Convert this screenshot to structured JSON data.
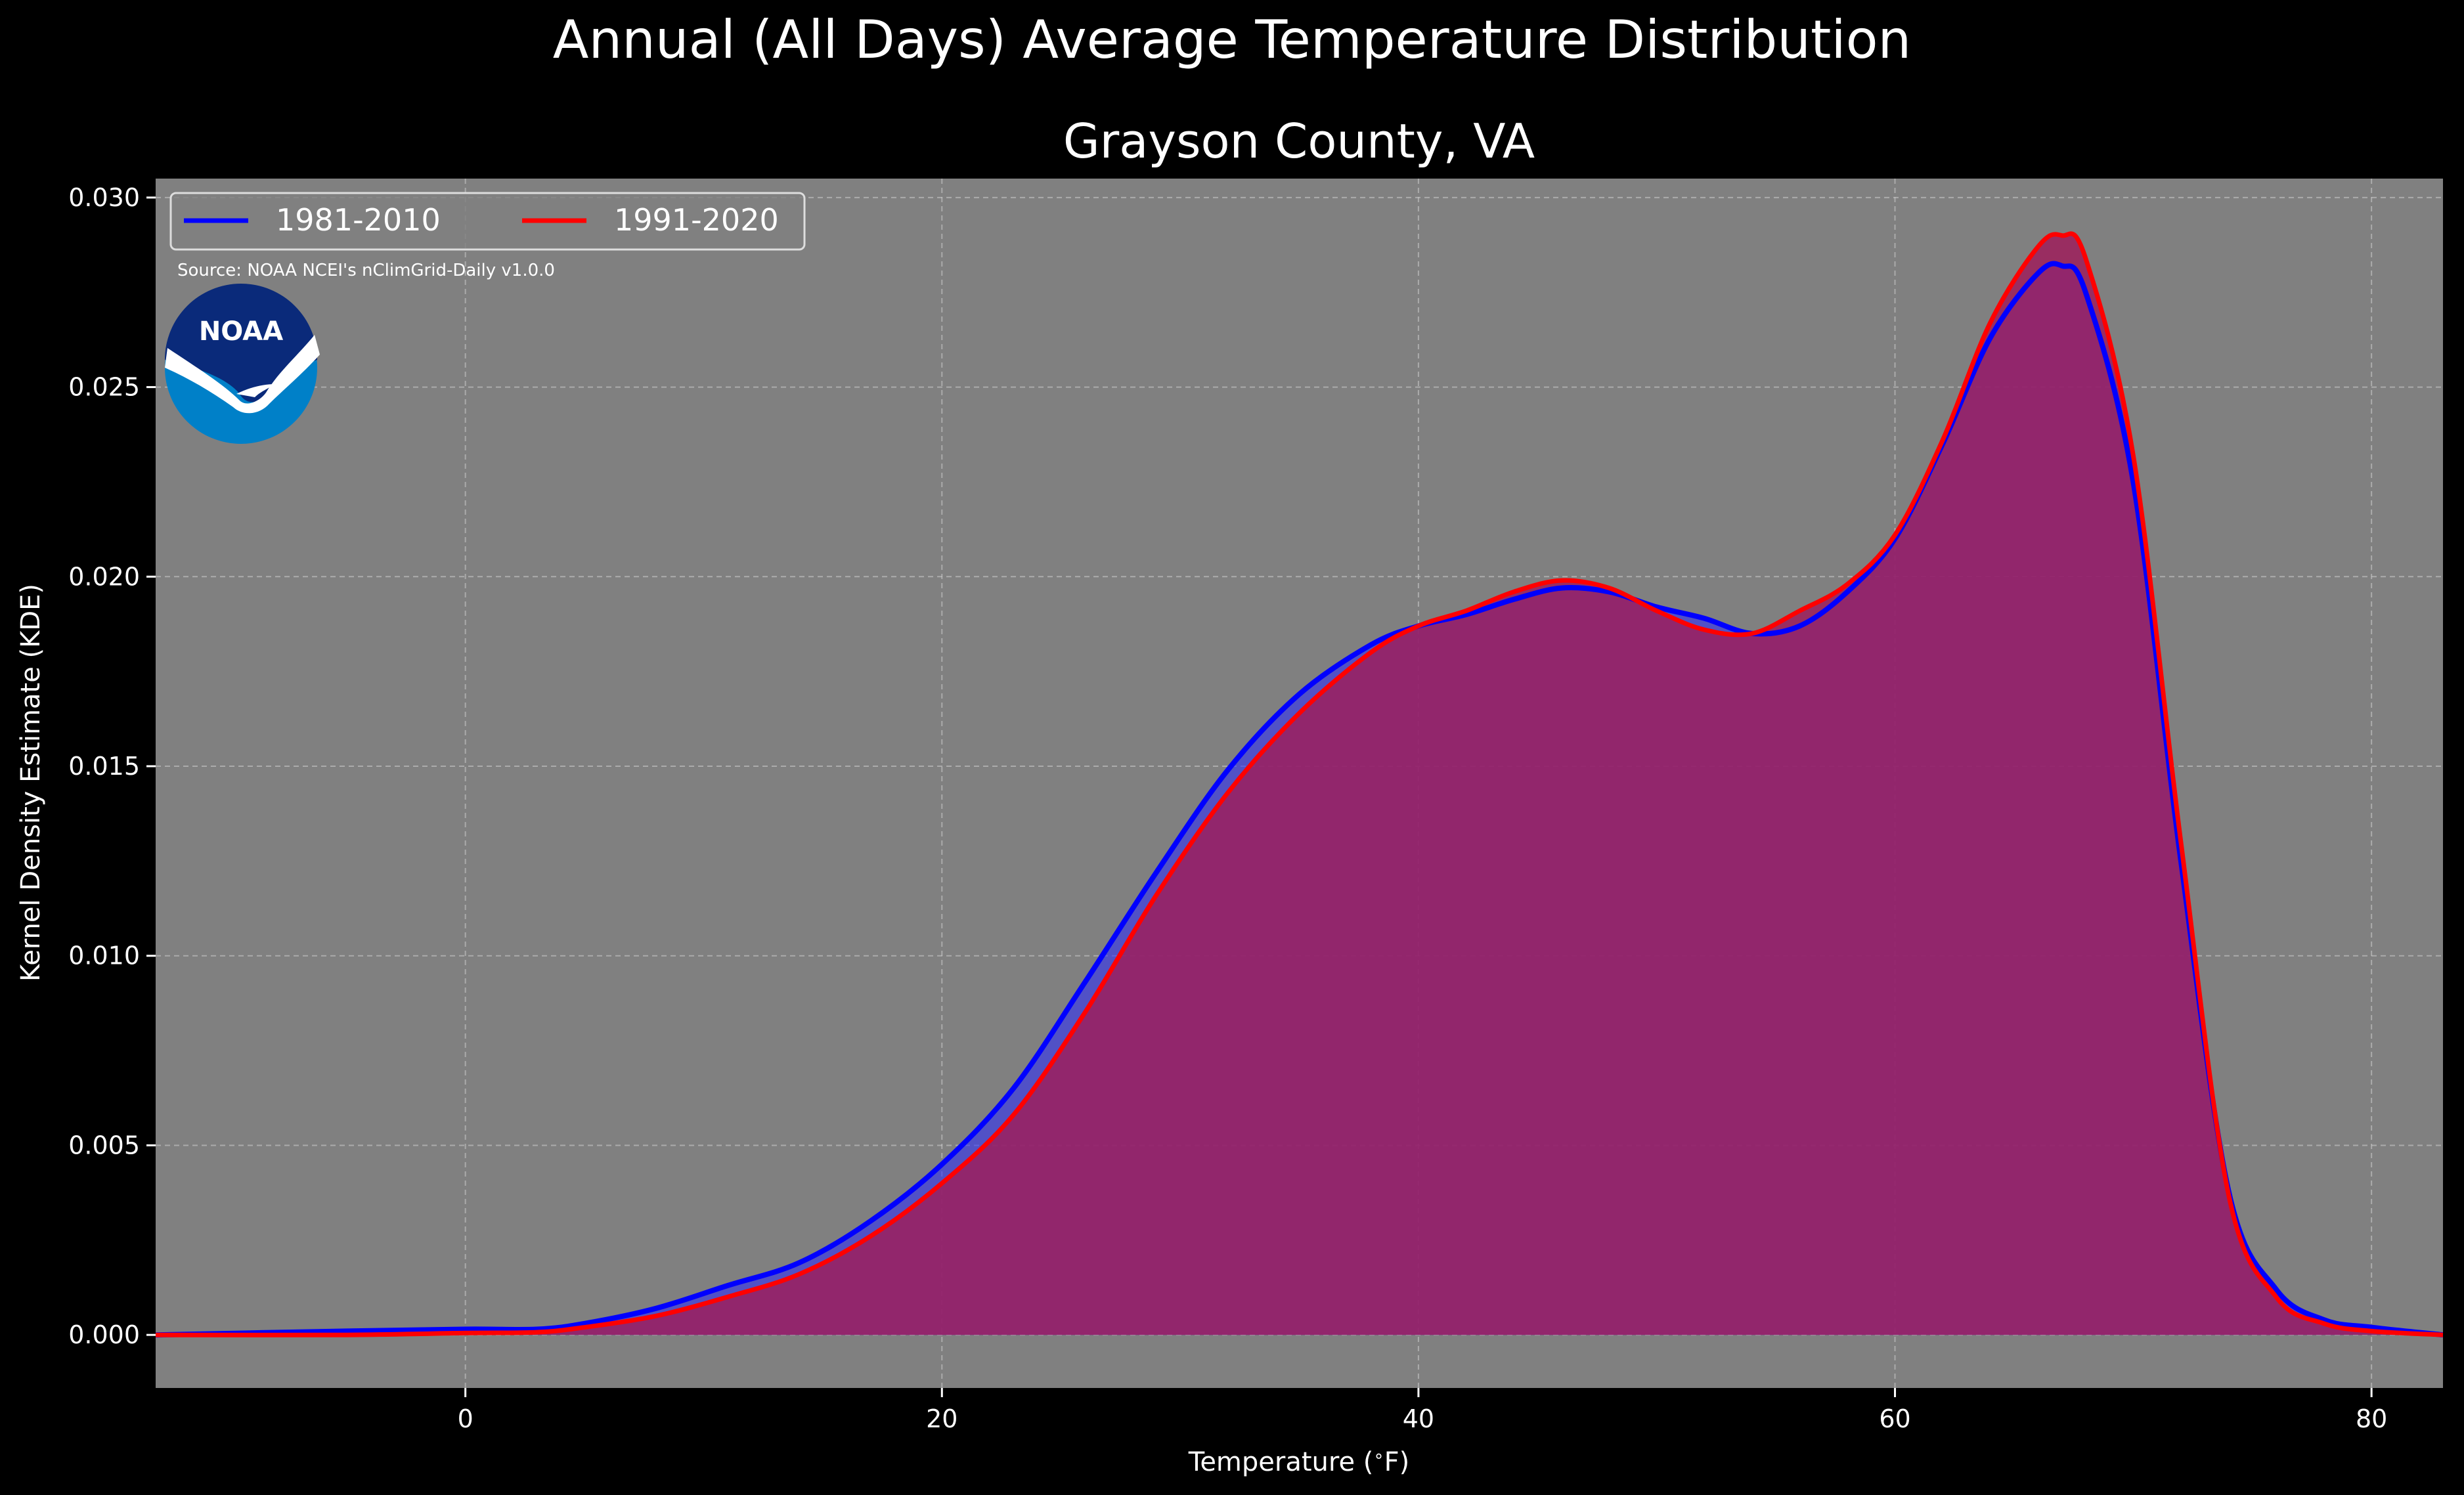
{
  "suptitle": "Annual (All Days) Average Temperature Distribution",
  "logo": {
    "text": "NOAA",
    "icon": "noaa-logo-icon"
  },
  "source_note": "Source: NOAA NCEI's nClimGrid-Daily v1.0.0",
  "colors": {
    "background": "#000000",
    "plot_bg": "#808080",
    "grid": "#c8c8c8",
    "fill": "#9e1e5c",
    "series_1981": "#0000ff",
    "series_1991": "#ff0000"
  },
  "chart_data": {
    "type": "area",
    "title": "Grayson County, VA",
    "xlabel": "Temperature ($^\\circ$F)",
    "ylabel": "Kernel Density Estimate (KDE)",
    "xlim": [
      -13,
      83
    ],
    "ylim": [
      -0.0014,
      0.0305
    ],
    "xticks": [
      0,
      20,
      40,
      60,
      80
    ],
    "xtick_labels": [
      "0",
      "20",
      "40",
      "60",
      "80"
    ],
    "yticks": [
      0.0,
      0.005,
      0.01,
      0.015,
      0.02,
      0.025,
      0.03
    ],
    "ytick_labels": [
      "0.000",
      "0.005",
      "0.010",
      "0.015",
      "0.020",
      "0.025",
      "0.030"
    ],
    "grid": true,
    "legend_position": "top-left",
    "x": [
      -13,
      -5,
      0,
      3,
      5,
      8,
      11,
      14,
      17,
      20,
      23,
      26,
      29,
      32,
      35,
      38,
      40,
      42,
      44,
      46,
      48,
      50,
      52,
      54,
      56,
      58,
      60,
      62,
      64,
      66,
      67,
      68,
      70,
      72,
      74,
      76,
      78,
      80,
      83
    ],
    "series": [
      {
        "name": "1981-2010",
        "color": "#0000ff",
        "values": [
          0.0,
          0.0001,
          0.00015,
          0.00015,
          0.0003,
          0.0007,
          0.0013,
          0.0019,
          0.003,
          0.0045,
          0.0065,
          0.0093,
          0.0122,
          0.0149,
          0.0169,
          0.0182,
          0.0187,
          0.019,
          0.0194,
          0.0197,
          0.0196,
          0.0192,
          0.0189,
          0.0185,
          0.0187,
          0.0196,
          0.021,
          0.0235,
          0.0263,
          0.028,
          0.0282,
          0.0275,
          0.0225,
          0.0125,
          0.0038,
          0.0012,
          0.0004,
          0.0002,
          0.0
        ]
      },
      {
        "name": "1991-2020",
        "color": "#ff0000",
        "values": [
          0.0,
          0.0,
          5e-05,
          7e-05,
          0.0002,
          0.0005,
          0.001,
          0.0016,
          0.0026,
          0.004,
          0.0058,
          0.0085,
          0.0116,
          0.0143,
          0.0164,
          0.018,
          0.0187,
          0.0191,
          0.0196,
          0.0199,
          0.0197,
          0.0191,
          0.0186,
          0.0185,
          0.0191,
          0.0198,
          0.0211,
          0.0236,
          0.0267,
          0.0287,
          0.029,
          0.0284,
          0.0232,
          0.013,
          0.0037,
          0.001,
          0.0003,
          0.0001,
          0.0
        ]
      }
    ]
  }
}
